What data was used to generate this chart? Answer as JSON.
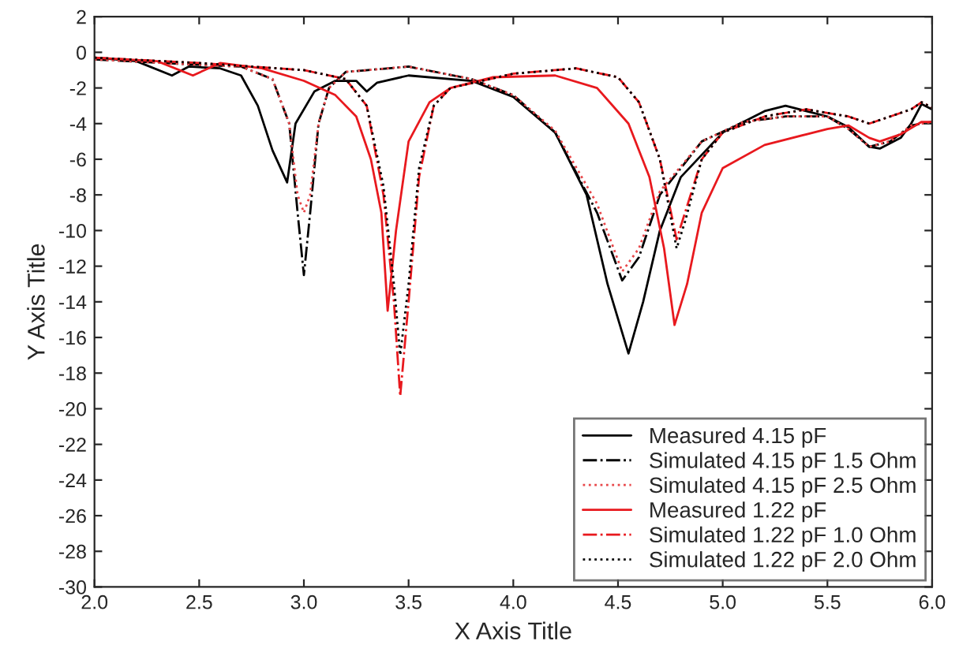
{
  "chart_data": {
    "type": "line",
    "xlabel": "X Axis Title",
    "ylabel": "Y Axis Title",
    "xlim": [
      2.0,
      6.0
    ],
    "ylim": [
      -30,
      2
    ],
    "xticks": [
      {
        "value": 2.0,
        "label": "2.0"
      },
      {
        "value": 2.5,
        "label": "2.5"
      },
      {
        "value": 3.0,
        "label": "3.0"
      },
      {
        "value": 3.5,
        "label": "3.5"
      },
      {
        "value": 4.0,
        "label": "4.0"
      },
      {
        "value": 4.5,
        "label": "4.5"
      },
      {
        "value": 5.0,
        "label": "5.0"
      },
      {
        "value": 5.5,
        "label": "5.5"
      },
      {
        "value": 6.0,
        "label": "6.0"
      }
    ],
    "yticks": [
      -30,
      -28,
      -26,
      -24,
      -22,
      -20,
      -18,
      -16,
      -14,
      -12,
      -10,
      -8,
      -6,
      -4,
      -2,
      0,
      2
    ],
    "grid": false,
    "legend": "bottom right",
    "marker": "none",
    "series": [
      {
        "name": "Measured 4.15 pF",
        "color": "#000000",
        "line_style": "solid",
        "x": [
          2.0,
          2.2,
          2.37,
          2.45,
          2.6,
          2.7,
          2.78,
          2.85,
          2.92,
          2.96,
          3.05,
          3.15,
          3.25,
          3.3,
          3.35,
          3.5,
          3.8,
          4.0,
          4.2,
          4.35,
          4.45,
          4.55,
          4.62,
          4.7,
          4.8,
          5.0,
          5.2,
          5.3,
          5.5,
          5.6,
          5.7,
          5.75,
          5.85,
          5.9,
          5.95,
          6.0
        ],
        "values": [
          -0.3,
          -0.5,
          -1.3,
          -0.8,
          -0.9,
          -1.3,
          -3.0,
          -5.5,
          -7.3,
          -4.0,
          -2.2,
          -1.6,
          -1.6,
          -2.2,
          -1.7,
          -1.3,
          -1.6,
          -2.5,
          -4.5,
          -8.0,
          -13.0,
          -16.9,
          -14.0,
          -10.0,
          -7.0,
          -4.5,
          -3.3,
          -3.0,
          -3.6,
          -4.2,
          -5.3,
          -5.4,
          -4.8,
          -4.0,
          -2.9,
          -3.2
        ]
      },
      {
        "name": "Simulated 4.15 pF 1.5 Ohm",
        "color": "#000000",
        "line_style": "dashdot",
        "x": [
          2.0,
          2.5,
          2.7,
          2.85,
          2.93,
          2.97,
          3.0,
          3.03,
          3.07,
          3.12,
          3.2,
          3.5,
          3.8,
          4.0,
          4.2,
          4.4,
          4.52,
          4.6,
          4.7,
          4.9,
          5.1,
          5.3,
          5.5,
          5.6,
          5.7,
          5.8,
          5.9,
          6.0
        ],
        "values": [
          -0.4,
          -0.7,
          -0.8,
          -1.5,
          -4.0,
          -9.0,
          -12.5,
          -9.0,
          -4.0,
          -2.0,
          -1.1,
          -0.8,
          -1.5,
          -2.4,
          -4.5,
          -9.0,
          -12.8,
          -11.5,
          -8.0,
          -5.0,
          -3.9,
          -3.6,
          -3.6,
          -4.3,
          -5.3,
          -5.0,
          -4.1,
          -3.9
        ]
      },
      {
        "name": "Simulated 4.15 pF 2.5 Ohm",
        "color": "#e8474a",
        "line_style": "dotted",
        "x": [
          2.0,
          2.5,
          2.7,
          2.85,
          2.93,
          2.97,
          3.0,
          3.03,
          3.07,
          3.12,
          3.2,
          3.5,
          3.8,
          4.0,
          4.2,
          4.4,
          4.52,
          4.6,
          4.7,
          4.9,
          5.1,
          5.3,
          5.5,
          5.6,
          5.7,
          5.8,
          5.9,
          6.0
        ],
        "values": [
          -0.4,
          -0.7,
          -0.8,
          -1.5,
          -4.0,
          -8.0,
          -9.0,
          -8.0,
          -4.0,
          -2.0,
          -1.1,
          -0.8,
          -1.5,
          -2.4,
          -4.4,
          -8.5,
          -12.3,
          -11.0,
          -7.8,
          -5.0,
          -3.9,
          -3.6,
          -3.6,
          -4.3,
          -5.3,
          -5.0,
          -4.1,
          -3.9
        ]
      },
      {
        "name": "Measured 1.22 pF",
        "color": "#e8191e",
        "line_style": "solid",
        "x": [
          2.0,
          2.3,
          2.47,
          2.6,
          2.8,
          3.0,
          3.15,
          3.25,
          3.32,
          3.37,
          3.4,
          3.44,
          3.5,
          3.6,
          3.7,
          3.9,
          4.2,
          4.4,
          4.55,
          4.65,
          4.72,
          4.77,
          4.83,
          4.9,
          5.0,
          5.2,
          5.4,
          5.5,
          5.6,
          5.7,
          5.75,
          5.85,
          5.95,
          6.0
        ],
        "values": [
          -0.3,
          -0.5,
          -1.3,
          -0.6,
          -0.9,
          -1.6,
          -2.4,
          -3.6,
          -6.0,
          -9.0,
          -14.5,
          -10.0,
          -5.0,
          -2.8,
          -2.0,
          -1.4,
          -1.3,
          -2.0,
          -4.0,
          -7.0,
          -11.0,
          -15.3,
          -13.0,
          -9.0,
          -6.5,
          -5.2,
          -4.6,
          -4.3,
          -4.1,
          -4.8,
          -5.0,
          -4.6,
          -3.9,
          -3.9
        ]
      },
      {
        "name": "Simulated 1.22 pF 1.0 Ohm",
        "color": "#e8191e",
        "line_style": "dashdot",
        "x": [
          2.0,
          2.5,
          3.0,
          3.2,
          3.3,
          3.38,
          3.43,
          3.46,
          3.5,
          3.55,
          3.62,
          3.7,
          4.0,
          4.3,
          4.5,
          4.6,
          4.7,
          4.78,
          4.82,
          4.9,
          5.0,
          5.2,
          5.4,
          5.6,
          5.7,
          5.8,
          5.9,
          5.95,
          6.0
        ],
        "values": [
          -0.3,
          -0.6,
          -1.0,
          -1.5,
          -3.0,
          -8.0,
          -14.0,
          -19.3,
          -14.0,
          -7.0,
          -3.0,
          -2.0,
          -1.2,
          -0.9,
          -1.4,
          -2.8,
          -6.0,
          -10.5,
          -9.0,
          -6.0,
          -4.5,
          -3.6,
          -3.2,
          -3.6,
          -4.0,
          -3.6,
          -3.2,
          -2.8,
          -3.1
        ]
      },
      {
        "name": "Simulated 1.22 pF 2.0 Ohm",
        "color": "#000000",
        "line_style": "dotted",
        "x": [
          2.0,
          2.5,
          3.0,
          3.2,
          3.3,
          3.38,
          3.43,
          3.46,
          3.5,
          3.55,
          3.62,
          3.7,
          4.0,
          4.3,
          4.5,
          4.6,
          4.7,
          4.78,
          4.82,
          4.9,
          5.0,
          5.2,
          5.4,
          5.6,
          5.7,
          5.8,
          5.9,
          5.95,
          6.0
        ],
        "values": [
          -0.3,
          -0.6,
          -1.0,
          -1.5,
          -3.0,
          -7.5,
          -13.0,
          -17.0,
          -13.0,
          -6.5,
          -3.0,
          -2.0,
          -1.2,
          -0.9,
          -1.4,
          -2.8,
          -6.0,
          -11.0,
          -9.5,
          -6.0,
          -4.5,
          -3.6,
          -3.2,
          -3.6,
          -4.0,
          -3.6,
          -3.2,
          -2.8,
          -3.1
        ]
      }
    ]
  }
}
